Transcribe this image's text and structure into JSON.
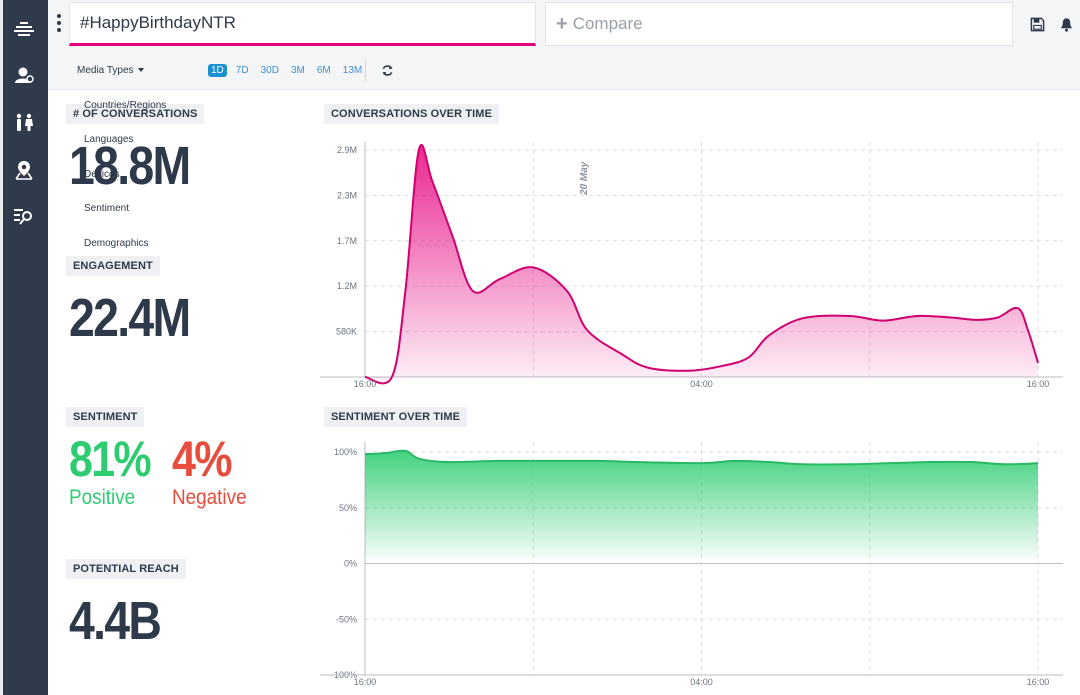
{
  "search": {
    "query": "#HappyBirthdayNTR"
  },
  "compare": {
    "label": "Compare"
  },
  "filters": {
    "media_types": "Media Types",
    "ranges": [
      "1D",
      "7D",
      "30D",
      "3M",
      "6M",
      "13M"
    ],
    "active_range": "1D"
  },
  "menu_items": [
    "Countries/Regions",
    "Languages",
    "Devices",
    "Sentiment",
    "Demographics"
  ],
  "metrics": {
    "conversations": {
      "label": "# OF CONVERSATIONS",
      "value": "18.8M"
    },
    "engagement": {
      "label": "ENGAGEMENT",
      "value": "22.4M"
    },
    "sentiment": {
      "label": "SENTIMENT",
      "positive_value": "81%",
      "positive_label": "Positive",
      "negative_value": "4%",
      "negative_label": "Negative"
    },
    "reach": {
      "label": "POTENTIAL REACH",
      "value": "4.4B"
    }
  },
  "colors": {
    "accent": "#e6007e",
    "positive": "#2ecc71",
    "negative": "#e74c3c",
    "sidebar": "#2f3a4b",
    "active_range": "#1a8fd1"
  },
  "chart_data": [
    {
      "type": "area",
      "title": "CONVERSATIONS OVER TIME",
      "y_ticks": [
        "580K",
        "1.2M",
        "1.7M",
        "2.3M",
        "2.9M"
      ],
      "x_ticks": [
        "16:00",
        "04:00",
        "16:00"
      ],
      "annotation": "20 May",
      "ylim": [
        0,
        2900000
      ],
      "points": [
        [
          0.0,
          0
        ],
        [
          0.04,
          0
        ],
        [
          0.06,
          1100000
        ],
        [
          0.08,
          2900000
        ],
        [
          0.1,
          2500000
        ],
        [
          0.13,
          1800000
        ],
        [
          0.16,
          1100000
        ],
        [
          0.2,
          1250000
        ],
        [
          0.25,
          1400000
        ],
        [
          0.3,
          1100000
        ],
        [
          0.33,
          600000
        ],
        [
          0.38,
          300000
        ],
        [
          0.42,
          120000
        ],
        [
          0.48,
          80000
        ],
        [
          0.53,
          140000
        ],
        [
          0.57,
          250000
        ],
        [
          0.6,
          530000
        ],
        [
          0.65,
          750000
        ],
        [
          0.72,
          780000
        ],
        [
          0.77,
          720000
        ],
        [
          0.82,
          780000
        ],
        [
          0.87,
          760000
        ],
        [
          0.91,
          730000
        ],
        [
          0.94,
          760000
        ],
        [
          0.97,
          880000
        ],
        [
          0.985,
          600000
        ],
        [
          1.0,
          180000
        ]
      ]
    },
    {
      "type": "area",
      "title": "SENTIMENT OVER TIME",
      "y_ticks": [
        "100%",
        "50%",
        "0%",
        "-50%",
        "-100%"
      ],
      "x_ticks": [
        "16:00",
        "04:00",
        "16:00"
      ],
      "ylim": [
        -100,
        100
      ],
      "points": [
        [
          0.0,
          98
        ],
        [
          0.03,
          99
        ],
        [
          0.06,
          101
        ],
        [
          0.08,
          94
        ],
        [
          0.12,
          91
        ],
        [
          0.2,
          92
        ],
        [
          0.28,
          92
        ],
        [
          0.35,
          92
        ],
        [
          0.4,
          91
        ],
        [
          0.5,
          90
        ],
        [
          0.55,
          92
        ],
        [
          0.6,
          91
        ],
        [
          0.65,
          89
        ],
        [
          0.72,
          89
        ],
        [
          0.78,
          90
        ],
        [
          0.84,
          91
        ],
        [
          0.9,
          91
        ],
        [
          0.95,
          89
        ],
        [
          1.0,
          90
        ]
      ]
    }
  ]
}
